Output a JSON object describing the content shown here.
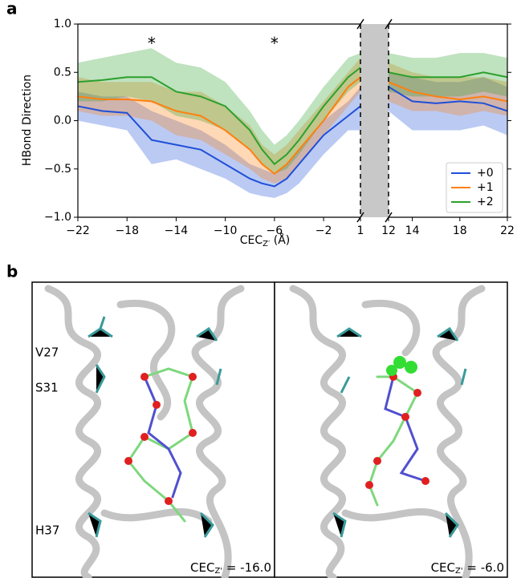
{
  "chart_data": {
    "type": "line",
    "ylabel": "HBond Direction",
    "xlabel": {
      "main": "CEC",
      "sub": "Z′",
      "unit": " (Å)"
    },
    "x": [
      -22,
      -20,
      -18,
      -16,
      -14,
      -12,
      -10,
      -8,
      -7,
      -6,
      -5,
      -4,
      -2,
      0,
      1,
      12,
      14,
      16,
      18,
      20,
      22
    ],
    "series": [
      {
        "name": "+0",
        "color": "#1f4fd8",
        "values": [
          0.15,
          0.1,
          0.08,
          -0.2,
          -0.25,
          -0.3,
          -0.45,
          -0.6,
          -0.65,
          -0.68,
          -0.6,
          -0.45,
          -0.15,
          0.05,
          0.15,
          0.35,
          0.2,
          0.18,
          0.2,
          0.18,
          0.1
        ],
        "lower": [
          0.0,
          -0.05,
          -0.1,
          -0.45,
          -0.4,
          -0.5,
          -0.6,
          -0.75,
          -0.78,
          -0.8,
          -0.75,
          -0.65,
          -0.35,
          -0.1,
          -0.1,
          0.1,
          -0.1,
          -0.1,
          -0.1,
          -0.05,
          -0.15
        ],
        "upper": [
          0.3,
          0.25,
          0.25,
          0.1,
          0.0,
          -0.1,
          -0.25,
          -0.45,
          -0.5,
          -0.55,
          -0.45,
          -0.3,
          0.0,
          0.2,
          0.35,
          0.5,
          0.45,
          0.4,
          0.4,
          0.45,
          0.35
        ]
      },
      {
        "name": "+1",
        "color": "#ff7f0e",
        "values": [
          0.25,
          0.22,
          0.22,
          0.2,
          0.1,
          0.05,
          -0.1,
          -0.3,
          -0.45,
          -0.55,
          -0.45,
          -0.3,
          0.0,
          0.35,
          0.45,
          0.4,
          0.3,
          0.25,
          0.22,
          0.25,
          0.2
        ],
        "lower": [
          0.1,
          0.05,
          0.05,
          0.0,
          -0.15,
          -0.2,
          -0.35,
          -0.5,
          -0.6,
          -0.65,
          -0.6,
          -0.45,
          -0.15,
          0.15,
          0.3,
          0.2,
          0.1,
          0.1,
          0.05,
          0.1,
          0.05
        ],
        "upper": [
          0.45,
          0.4,
          0.4,
          0.4,
          0.3,
          0.3,
          0.15,
          -0.05,
          -0.25,
          -0.35,
          -0.25,
          -0.1,
          0.2,
          0.5,
          0.65,
          0.6,
          0.5,
          0.45,
          0.45,
          0.45,
          0.4
        ]
      },
      {
        "name": "+2",
        "color": "#2ca02c",
        "values": [
          0.4,
          0.42,
          0.45,
          0.45,
          0.3,
          0.25,
          0.15,
          -0.1,
          -0.3,
          -0.45,
          -0.35,
          -0.2,
          0.15,
          0.45,
          0.55,
          0.5,
          0.45,
          0.45,
          0.45,
          0.5,
          0.45
        ],
        "lower": [
          0.2,
          0.2,
          0.25,
          0.2,
          0.05,
          0.0,
          -0.1,
          -0.3,
          -0.45,
          -0.55,
          -0.5,
          -0.35,
          0.0,
          0.3,
          0.4,
          0.3,
          0.25,
          0.25,
          0.25,
          0.3,
          0.25
        ],
        "upper": [
          0.6,
          0.65,
          0.7,
          0.75,
          0.6,
          0.55,
          0.4,
          0.1,
          -0.1,
          -0.25,
          -0.15,
          0.0,
          0.35,
          0.65,
          0.7,
          0.7,
          0.65,
          0.65,
          0.7,
          0.7,
          0.65
        ]
      }
    ],
    "xlim": [
      -22,
      22
    ],
    "xbreak": [
      1,
      12
    ],
    "break_color": "#c8c8c8",
    "xticks": [
      {
        "value": -22,
        "label": "−22"
      },
      {
        "value": -18,
        "label": "−18"
      },
      {
        "value": -14,
        "label": "−14"
      },
      {
        "value": -10,
        "label": "−10"
      },
      {
        "value": -6,
        "label": "−6"
      },
      {
        "value": -2,
        "label": "−2"
      },
      1,
      12,
      14,
      18,
      22
    ],
    "ylim": [
      -1,
      1
    ],
    "yticks": [
      {
        "value": -1,
        "label": "−1.0"
      },
      {
        "value": -0.5,
        "label": "−0.5"
      },
      {
        "value": 0,
        "label": "0.0"
      },
      {
        "value": 0.5,
        "label": "0.5"
      },
      {
        "value": 1,
        "label": "1.0"
      }
    ],
    "legend": "lower right",
    "annotations": [
      {
        "text": "*",
        "x": -16,
        "y": 0.82
      },
      {
        "text": "*",
        "x": -6,
        "y": 0.82
      }
    ]
  },
  "panel_labels": [
    "a",
    "b"
  ],
  "structures": {
    "residues": [
      "V27",
      "S31",
      "H37"
    ],
    "frames": [
      {
        "main": "CEC",
        "sub": "Z'",
        "value_text": " = -16.0"
      },
      {
        "main": "CEC",
        "sub": "Z'",
        "value_text": " = -6.0"
      }
    ]
  }
}
